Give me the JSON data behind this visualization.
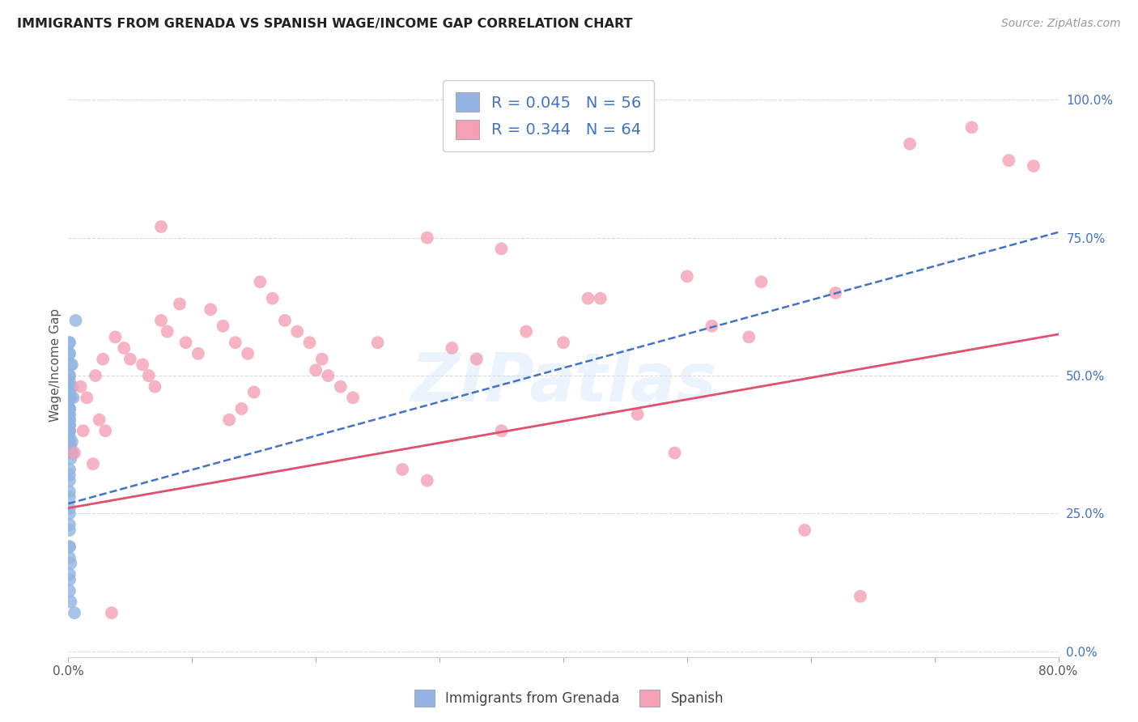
{
  "title": "IMMIGRANTS FROM GRENADA VS SPANISH WAGE/INCOME GAP CORRELATION CHART",
  "source": "Source: ZipAtlas.com",
  "ylabel": "Wage/Income Gap",
  "xlim": [
    0.0,
    0.8
  ],
  "ylim": [
    -0.01,
    1.05
  ],
  "ytick_values": [
    0.0,
    0.25,
    0.5,
    0.75,
    1.0
  ],
  "ytick_labels": [
    "0.0%",
    "25.0%",
    "50.0%",
    "75.0%",
    "100.0%"
  ],
  "xtick_values": [
    0.0,
    0.1,
    0.2,
    0.3,
    0.4,
    0.5,
    0.6,
    0.7,
    0.8
  ],
  "xtick_labels": [
    "0.0%",
    "",
    "",
    "",
    "",
    "",
    "",
    "",
    "80.0%"
  ],
  "watermark_text": "ZIPatlas",
  "legend_label1": "Immigrants from Grenada",
  "legend_label2": "Spanish",
  "R1": 0.045,
  "N1": 56,
  "R2": 0.344,
  "N2": 64,
  "color_blue_scatter": "#93b4e3",
  "color_pink_scatter": "#f4a0b5",
  "color_blue_line": "#4472c4",
  "color_pink_line": "#e05070",
  "color_label": "#4472c4",
  "bg": "#ffffff",
  "grid_color": "#cccccc",
  "blue_trend_x0": 0.0,
  "blue_trend_y0": 0.268,
  "blue_trend_x1": 0.8,
  "blue_trend_y1": 0.76,
  "pink_trend_x0": 0.0,
  "pink_trend_y0": 0.26,
  "pink_trend_x1": 0.8,
  "pink_trend_y1": 0.575,
  "blue_x": [
    0.001,
    0.001,
    0.002,
    0.001,
    0.001,
    0.003,
    0.001,
    0.002,
    0.001,
    0.001,
    0.001,
    0.001,
    0.001,
    0.001,
    0.001,
    0.002,
    0.001,
    0.001,
    0.001,
    0.001,
    0.001,
    0.001,
    0.002,
    0.001,
    0.002,
    0.001,
    0.001,
    0.001,
    0.001,
    0.001,
    0.001,
    0.002,
    0.003,
    0.001,
    0.004,
    0.001,
    0.001,
    0.003,
    0.001,
    0.001,
    0.001,
    0.001,
    0.001,
    0.001,
    0.001,
    0.001,
    0.006,
    0.001,
    0.001,
    0.003,
    0.001,
    0.001,
    0.005,
    0.001,
    0.001,
    0.003
  ],
  "blue_y": [
    0.42,
    0.44,
    0.46,
    0.4,
    0.38,
    0.36,
    0.5,
    0.52,
    0.54,
    0.56,
    0.47,
    0.49,
    0.43,
    0.41,
    0.37,
    0.35,
    0.33,
    0.31,
    0.28,
    0.25,
    0.22,
    0.19,
    0.16,
    0.13,
    0.09,
    0.4,
    0.41,
    0.39,
    0.42,
    0.43,
    0.38,
    0.37,
    0.36,
    0.44,
    0.46,
    0.48,
    0.5,
    0.52,
    0.54,
    0.56,
    0.32,
    0.29,
    0.26,
    0.23,
    0.19,
    0.17,
    0.6,
    0.4,
    0.41,
    0.38,
    0.14,
    0.11,
    0.07,
    0.44,
    0.46,
    0.48
  ],
  "pink_x": [
    0.005,
    0.012,
    0.02,
    0.025,
    0.03,
    0.01,
    0.015,
    0.022,
    0.028,
    0.038,
    0.045,
    0.05,
    0.06,
    0.065,
    0.07,
    0.075,
    0.08,
    0.09,
    0.095,
    0.105,
    0.115,
    0.125,
    0.135,
    0.145,
    0.155,
    0.165,
    0.175,
    0.185,
    0.195,
    0.205,
    0.13,
    0.14,
    0.15,
    0.2,
    0.21,
    0.22,
    0.23,
    0.25,
    0.27,
    0.29,
    0.31,
    0.33,
    0.35,
    0.37,
    0.4,
    0.43,
    0.46,
    0.49,
    0.52,
    0.55,
    0.29,
    0.35,
    0.42,
    0.5,
    0.56,
    0.62,
    0.68,
    0.73,
    0.76,
    0.78,
    0.595,
    0.64,
    0.075,
    0.035
  ],
  "pink_y": [
    0.36,
    0.4,
    0.34,
    0.42,
    0.4,
    0.48,
    0.46,
    0.5,
    0.53,
    0.57,
    0.55,
    0.53,
    0.52,
    0.5,
    0.48,
    0.6,
    0.58,
    0.63,
    0.56,
    0.54,
    0.62,
    0.59,
    0.56,
    0.54,
    0.67,
    0.64,
    0.6,
    0.58,
    0.56,
    0.53,
    0.42,
    0.44,
    0.47,
    0.51,
    0.5,
    0.48,
    0.46,
    0.56,
    0.33,
    0.31,
    0.55,
    0.53,
    0.4,
    0.58,
    0.56,
    0.64,
    0.43,
    0.36,
    0.59,
    0.57,
    0.75,
    0.73,
    0.64,
    0.68,
    0.67,
    0.65,
    0.92,
    0.95,
    0.89,
    0.88,
    0.22,
    0.1,
    0.77,
    0.07
  ]
}
